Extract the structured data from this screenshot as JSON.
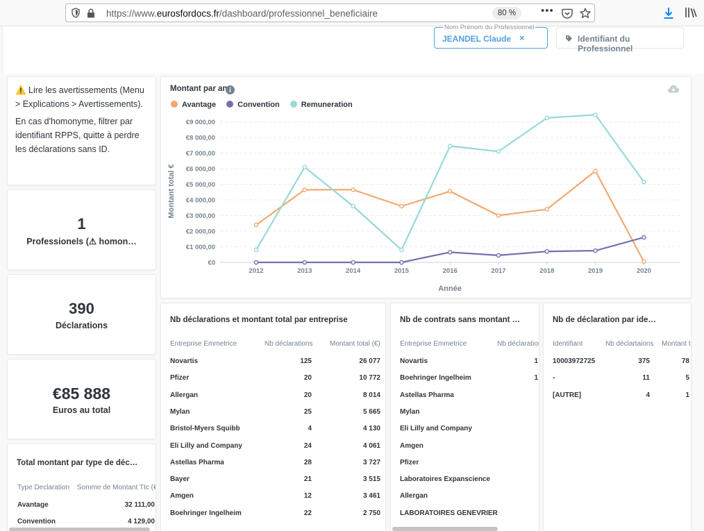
{
  "browser": {
    "url_prefix": "https://www.",
    "url_domain": "eurosfordocs.fr",
    "url_path": "/dashboard/professionnel_beneficiaire",
    "zoom": "80 %",
    "more": "•••"
  },
  "filters": {
    "active_label": "Nom Prénom du Professionnel",
    "active_value": "JEANDEL Claude",
    "active_close": "×",
    "idle_label": "Identifiant du Professionnel"
  },
  "note": {
    "line1": "⚠️ Lire les avertissements (Menu > Explications > Avertissements).",
    "line2": "En cas d'homonyme, filtrer par identifiant RPPS, quitte à perdre les déclarations sans ID."
  },
  "kpis": {
    "professionnels_value": "1",
    "professionnels_label": "Professionels (⚠ homon…",
    "declarations_value": "390",
    "declarations_label": "Déclarations",
    "euros_value": "€85 888",
    "euros_label": "Euros au total"
  },
  "type_table": {
    "title": "Total montant par type de déc…",
    "headers": [
      "Type Declaration",
      "Somme de Montant Ttc (€)"
    ],
    "rows": [
      [
        "Avantage",
        "32 111,00"
      ],
      [
        "Convention",
        "4 129,00"
      ]
    ]
  },
  "chart_data": {
    "type": "line",
    "title": "Montant par an",
    "xlabel": "Année",
    "ylabel": "Montant total €",
    "categories": [
      "2012",
      "2013",
      "2014",
      "2015",
      "2016",
      "2017",
      "2018",
      "2019",
      "2020"
    ],
    "yticks": [
      "€0",
      "€1 000,00",
      "€2 000,00",
      "€3 000,00",
      "€4 000,00",
      "€5 000,00",
      "€6 000,00",
      "€7 000,00",
      "€8 000,00",
      "€9 000,00"
    ],
    "ylim": [
      0,
      10000
    ],
    "series": [
      {
        "name": "Avantage",
        "color": "#f2a86f",
        "values": [
          2400,
          4650,
          4650,
          3600,
          4550,
          3000,
          3400,
          5850,
          50
        ]
      },
      {
        "name": "Convention",
        "color": "#7172ad",
        "values": [
          0,
          0,
          0,
          0,
          650,
          450,
          700,
          750,
          1600
        ]
      },
      {
        "name": "Remuneration",
        "color": "#98d9d9",
        "values": [
          800,
          6100,
          3600,
          800,
          7450,
          7100,
          9250,
          9450,
          5150
        ]
      }
    ],
    "legend_position": "top-left",
    "grid": true
  },
  "entreprise_table": {
    "title": "Nb déclarations et montant total par entreprise",
    "headers": [
      "Entreprise Emmetrice",
      "Nb déclarations",
      "Montant total (€)"
    ],
    "rows": [
      [
        "Novartis",
        "125",
        "26 077"
      ],
      [
        "Pfizer",
        "20",
        "10 772"
      ],
      [
        "Allergan",
        "20",
        "8 014"
      ],
      [
        "Mylan",
        "25",
        "5 665"
      ],
      [
        "Bristol-Myers Squibb",
        "4",
        "4 130"
      ],
      [
        "Eli Lilly and Company",
        "24",
        "4 061"
      ],
      [
        "Astellas Pharma",
        "28",
        "3 727"
      ],
      [
        "Bayer",
        "21",
        "3 515"
      ],
      [
        "Amgen",
        "12",
        "3 461"
      ],
      [
        "Boehringer Ingelheim",
        "22",
        "2 750"
      ]
    ]
  },
  "contrats_table": {
    "title": "Nb de contrats sans montant …",
    "headers": [
      "Entreprise Emmetrice",
      "Nb déclaratior"
    ],
    "rows": [
      [
        "Novartis",
        "1"
      ],
      [
        "Boehringer Ingelheim",
        "1"
      ],
      [
        "Astellas Pharma",
        ""
      ],
      [
        "Mylan",
        ""
      ],
      [
        "Eli Lilly and Company",
        ""
      ],
      [
        "Amgen",
        ""
      ],
      [
        "Pfizer",
        ""
      ],
      [
        "Laboratoires Expanscience",
        ""
      ],
      [
        "Allergan",
        ""
      ],
      [
        "LABORATOIRES GENEVRIER",
        ""
      ]
    ]
  },
  "identifiant_table": {
    "title": "Nb de déclaration par ide…",
    "headers": [
      "Identifiant",
      "Nb déclartaions",
      "Montant t"
    ],
    "rows": [
      [
        "10003972725",
        "375",
        "78"
      ],
      [
        "-",
        "11",
        "5"
      ],
      [
        "[AUTRE]",
        "4",
        "1"
      ]
    ]
  },
  "icons": [
    "shield-icon",
    "lock-icon",
    "pocket-icon",
    "star-icon",
    "download-icon",
    "library-icon",
    "tag-icon",
    "info-icon",
    "cloud-download-icon"
  ]
}
